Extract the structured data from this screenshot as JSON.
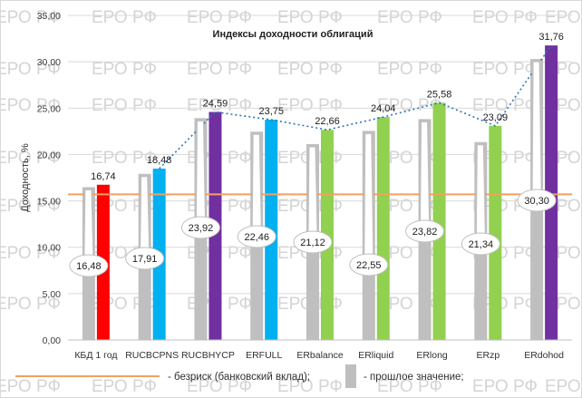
{
  "chart_data": {
    "type": "bar",
    "title": "Индексы доходности облигаций",
    "ylabel": "Доходность, %",
    "ylim": [
      0,
      35
    ],
    "ytick_labels": [
      "0,00",
      "5,00",
      "10,00",
      "15,00",
      "20,00",
      "25,00",
      "30,00",
      "35,00"
    ],
    "ytick_values": [
      0,
      5,
      10,
      15,
      20,
      25,
      30,
      35
    ],
    "grid": true,
    "categories": [
      "КБД 1 год",
      "RUCBCPNS",
      "RUCBHYCP",
      "ERFULL",
      "ERbalance",
      "ERliquid",
      "ERlong",
      "ERzp",
      "ERdohod"
    ],
    "series": [
      {
        "name": "- прошлое значение;",
        "color": "#bfbfbf",
        "values": [
          16.48,
          17.91,
          23.92,
          22.46,
          21.12,
          22.55,
          23.82,
          21.34,
          30.3
        ],
        "labels": [
          "16,48",
          "17,91",
          "23,92",
          "22,46",
          "21,12",
          "22,55",
          "23,82",
          "21,34",
          "30,30"
        ]
      },
      {
        "values": [
          16.74,
          18.48,
          24.59,
          23.75,
          22.66,
          24.04,
          25.58,
          23.09,
          31.76
        ],
        "labels": [
          "16,74",
          "18,48",
          "24,59",
          "23,75",
          "22,66",
          "24,04",
          "25,58",
          "23,09",
          "31,76"
        ],
        "colors": [
          "#ff0000",
          "#00b0f0",
          "#7030a0",
          "#00b0f0",
          "#92d050",
          "#92d050",
          "#92d050",
          "#92d050",
          "#7030a0"
        ]
      }
    ],
    "reference_line": {
      "name": "- безриск (банковский вклад);",
      "value": 15.7,
      "color": "#f4a060"
    },
    "trendline": {
      "style": "dotted",
      "color": "#2e75b6",
      "from_index": 1
    },
    "legend": [
      {
        "name": "- безриск (банковский вклад);",
        "kind": "line",
        "color": "#f4a060"
      },
      {
        "name": "- прошлое значение;",
        "kind": "box",
        "color": "#bfbfbf"
      }
    ],
    "legend_position": "bottom"
  },
  "watermark": "ЕРО РФ"
}
